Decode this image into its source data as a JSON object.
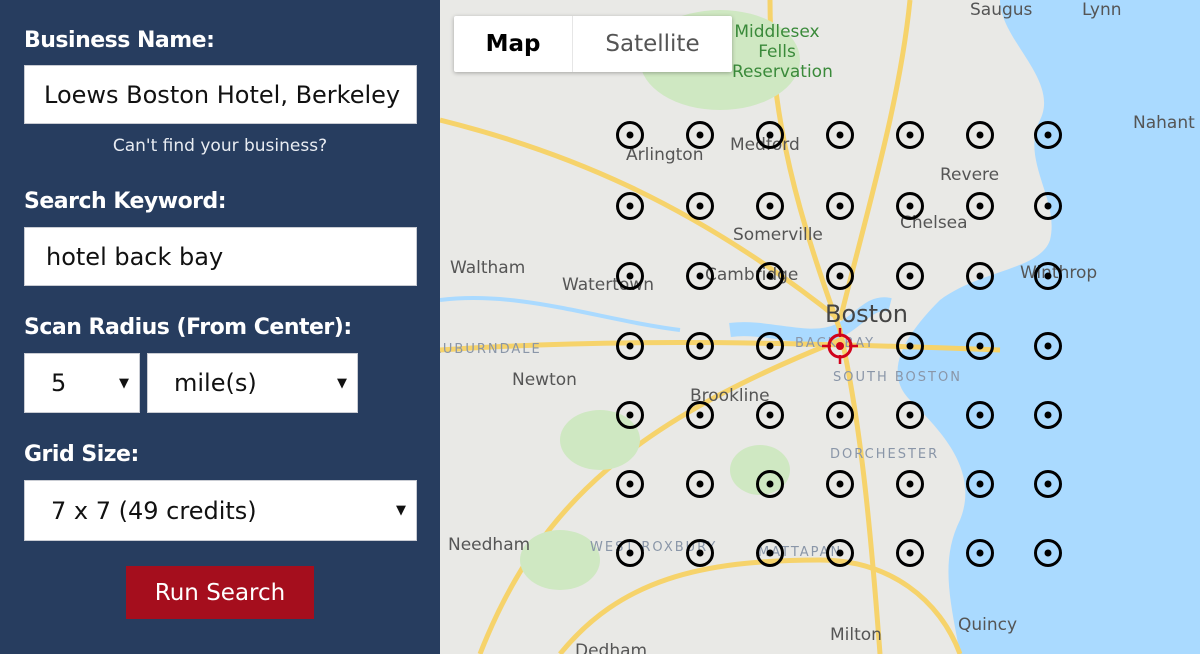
{
  "form": {
    "business_label": "Business Name:",
    "business_value": "Loews Boston Hotel, Berkeley",
    "cant_find": "Can't find your business?",
    "keyword_label": "Search Keyword:",
    "keyword_value": "hotel back bay",
    "radius_label": "Scan Radius (From Center):",
    "radius_value": "5",
    "radius_unit": "mile(s)",
    "grid_label": "Grid Size:",
    "grid_value": "7 x 7 (49 credits)",
    "run_label": "Run Search"
  },
  "map": {
    "tabs": [
      {
        "label": "Map",
        "active": true
      },
      {
        "label": "Satellite",
        "active": false
      }
    ],
    "places": [
      {
        "name": "Saugus",
        "type": "town"
      },
      {
        "name": "Lynn",
        "type": "town"
      },
      {
        "name": "Middlesex Fells Reservation",
        "type": "park"
      },
      {
        "name": "Nahant",
        "type": "town"
      },
      {
        "name": "Arlington",
        "type": "town"
      },
      {
        "name": "Medford",
        "type": "town"
      },
      {
        "name": "Revere",
        "type": "town"
      },
      {
        "name": "Somerville",
        "type": "town"
      },
      {
        "name": "Chelsea",
        "type": "town"
      },
      {
        "name": "Waltham",
        "type": "town"
      },
      {
        "name": "Watertown",
        "type": "town"
      },
      {
        "name": "Cambridge",
        "type": "town"
      },
      {
        "name": "Winthrop",
        "type": "town"
      },
      {
        "name": "Boston",
        "type": "city"
      },
      {
        "name": "BACK BAY",
        "type": "district"
      },
      {
        "name": "AUBURNDALE",
        "type": "district"
      },
      {
        "name": "Newton",
        "type": "town"
      },
      {
        "name": "SOUTH BOSTON",
        "type": "district"
      },
      {
        "name": "Brookline",
        "type": "town"
      },
      {
        "name": "DORCHESTER",
        "type": "district"
      },
      {
        "name": "Needham",
        "type": "town"
      },
      {
        "name": "WEST ROXBURY",
        "type": "district"
      },
      {
        "name": "MATTAPAN",
        "type": "district"
      },
      {
        "name": "Milton",
        "type": "town"
      },
      {
        "name": "Quincy",
        "type": "town"
      },
      {
        "name": "Dedham",
        "type": "town"
      }
    ],
    "grid": {
      "rows": 7,
      "cols": 7,
      "center": "red-crosshair"
    },
    "colors": {
      "panel": "#273d5f",
      "run_button": "#a50e1d",
      "water": "#aadaff",
      "land": "#e9e9e6",
      "center_marker": "#d0021b"
    }
  }
}
